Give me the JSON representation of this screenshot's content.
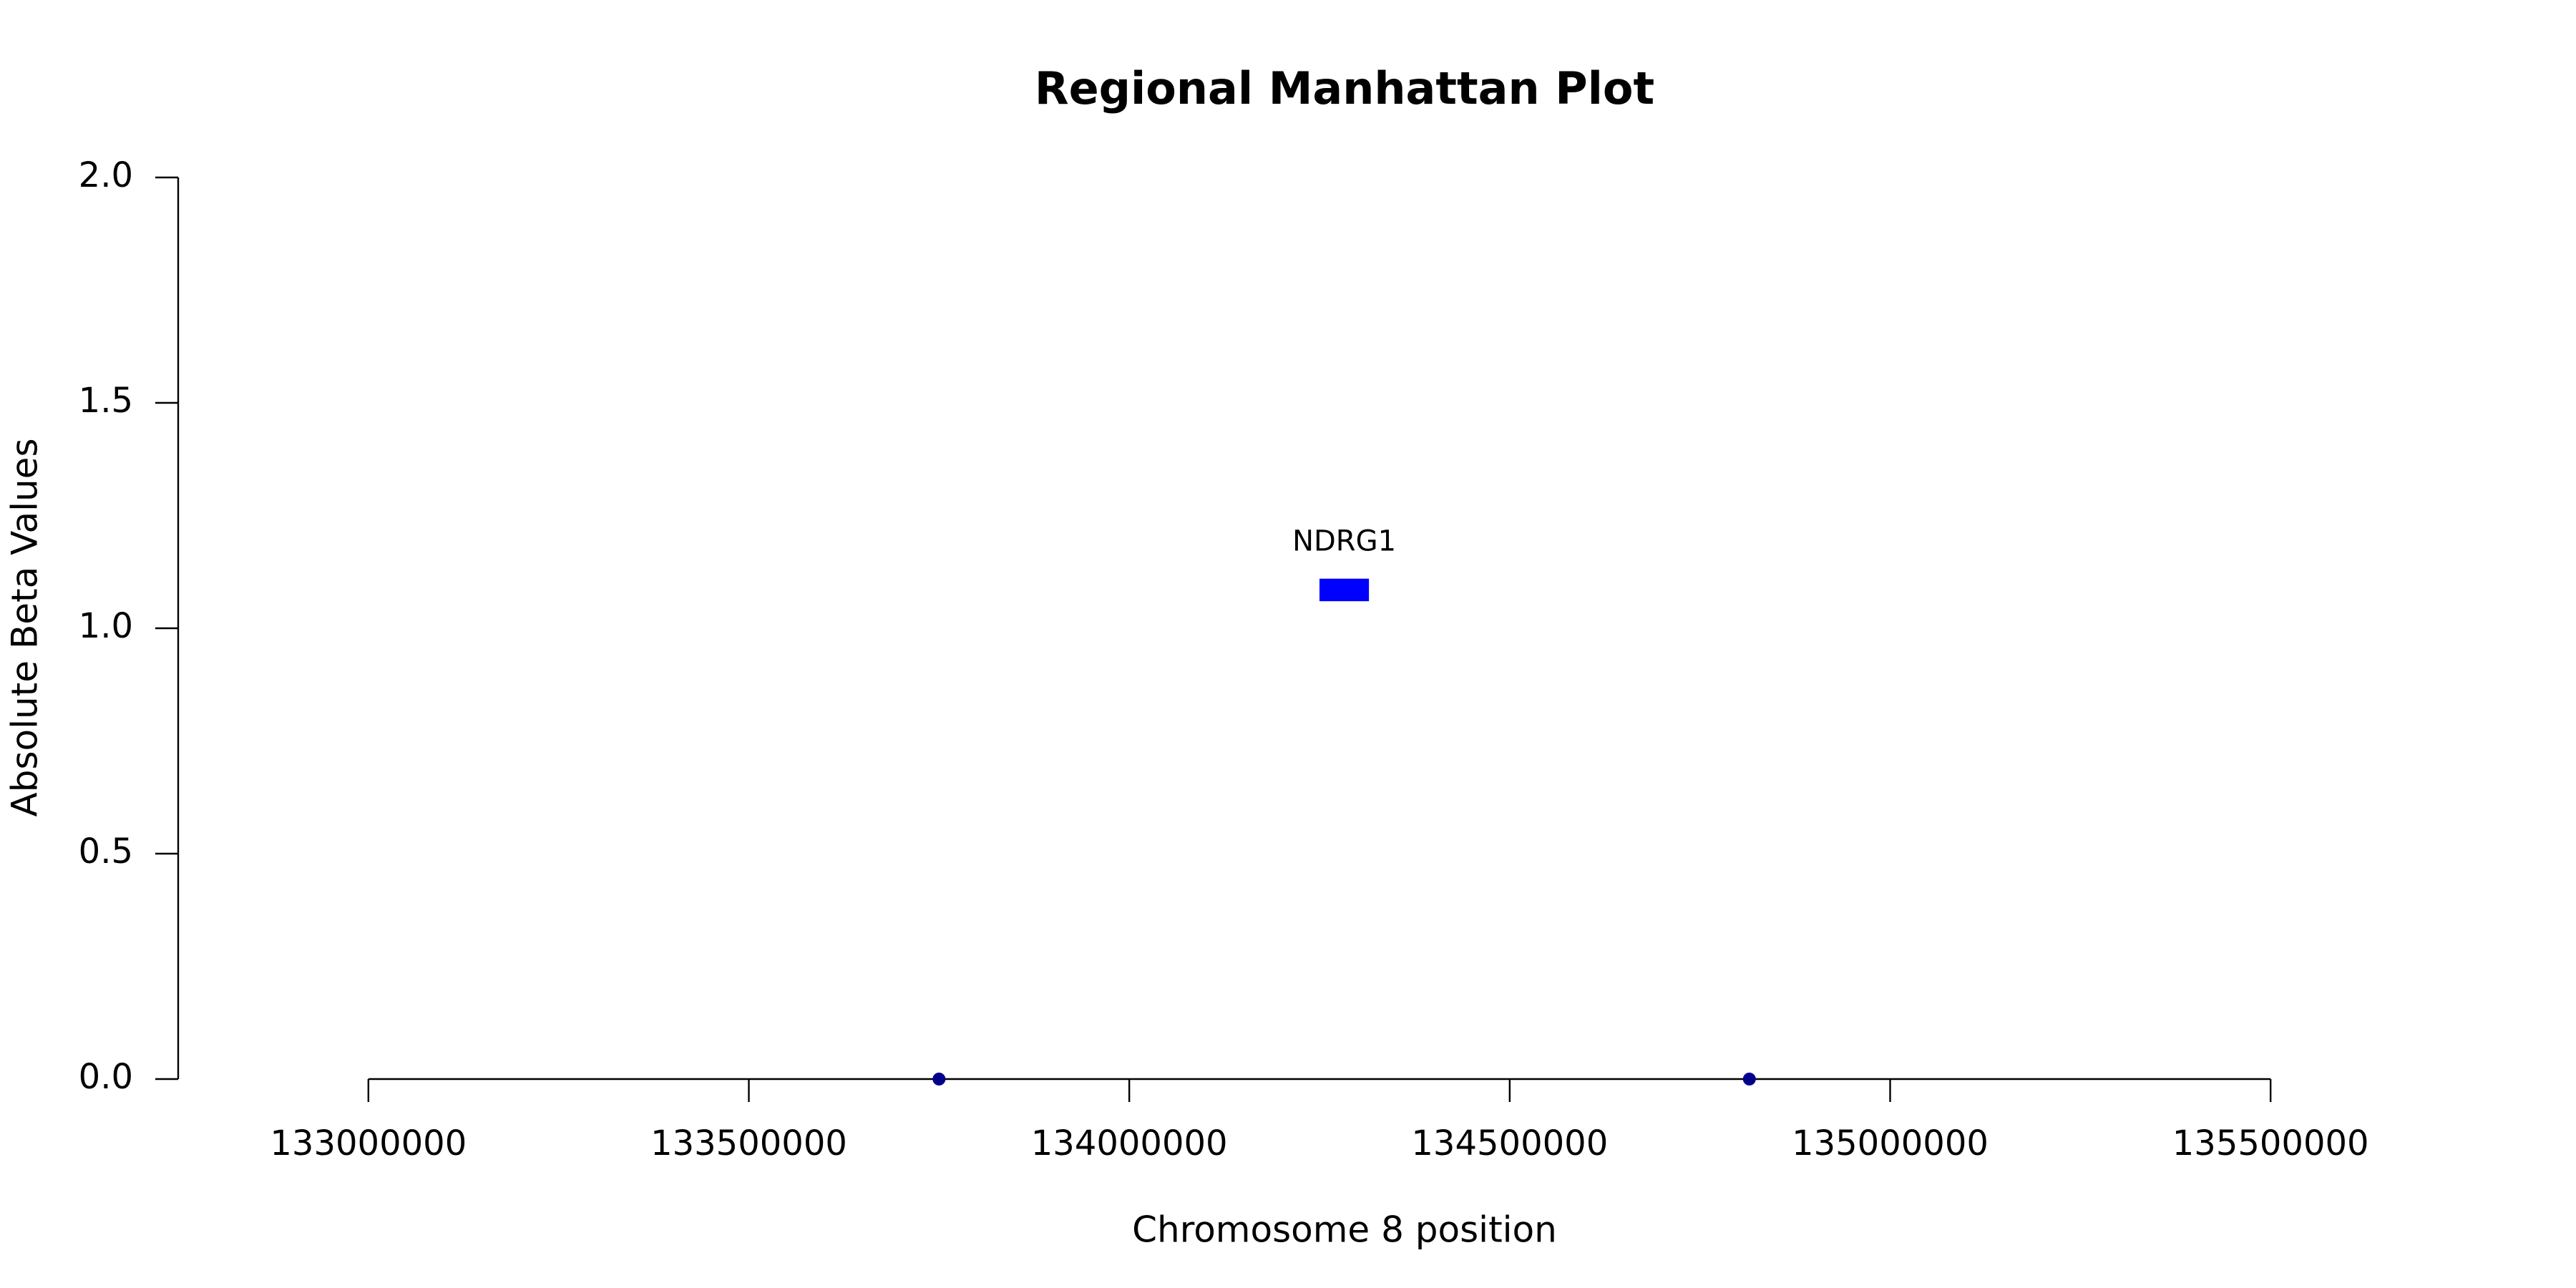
{
  "chart_data": {
    "type": "scatter",
    "title": "Regional Manhattan Plot",
    "x_label": "Chromosome 8 position",
    "y_label": "Absolute Beta Values",
    "x": [
      133750000,
      134815000
    ],
    "values": [
      0,
      0
    ],
    "color": "#00008b",
    "genes": [
      {
        "name": "NDRG1",
        "start": 134250000,
        "end": 134315000,
        "ymin": 1.06,
        "ymax": 1.11,
        "color": "#0000ff"
      }
    ],
    "xlim": [
      132750000,
      135750000
    ],
    "xticks": [
      133000000,
      133500000,
      134000000,
      134500000,
      135000000,
      135500000
    ],
    "ylim": [
      0,
      2
    ],
    "yticks": [
      {
        "value": 0,
        "label": "0.0"
      },
      0.5,
      {
        "value": 1,
        "label": "1.0"
      },
      1.5,
      {
        "value": 2,
        "label": "2.0"
      }
    ],
    "grid": false
  }
}
